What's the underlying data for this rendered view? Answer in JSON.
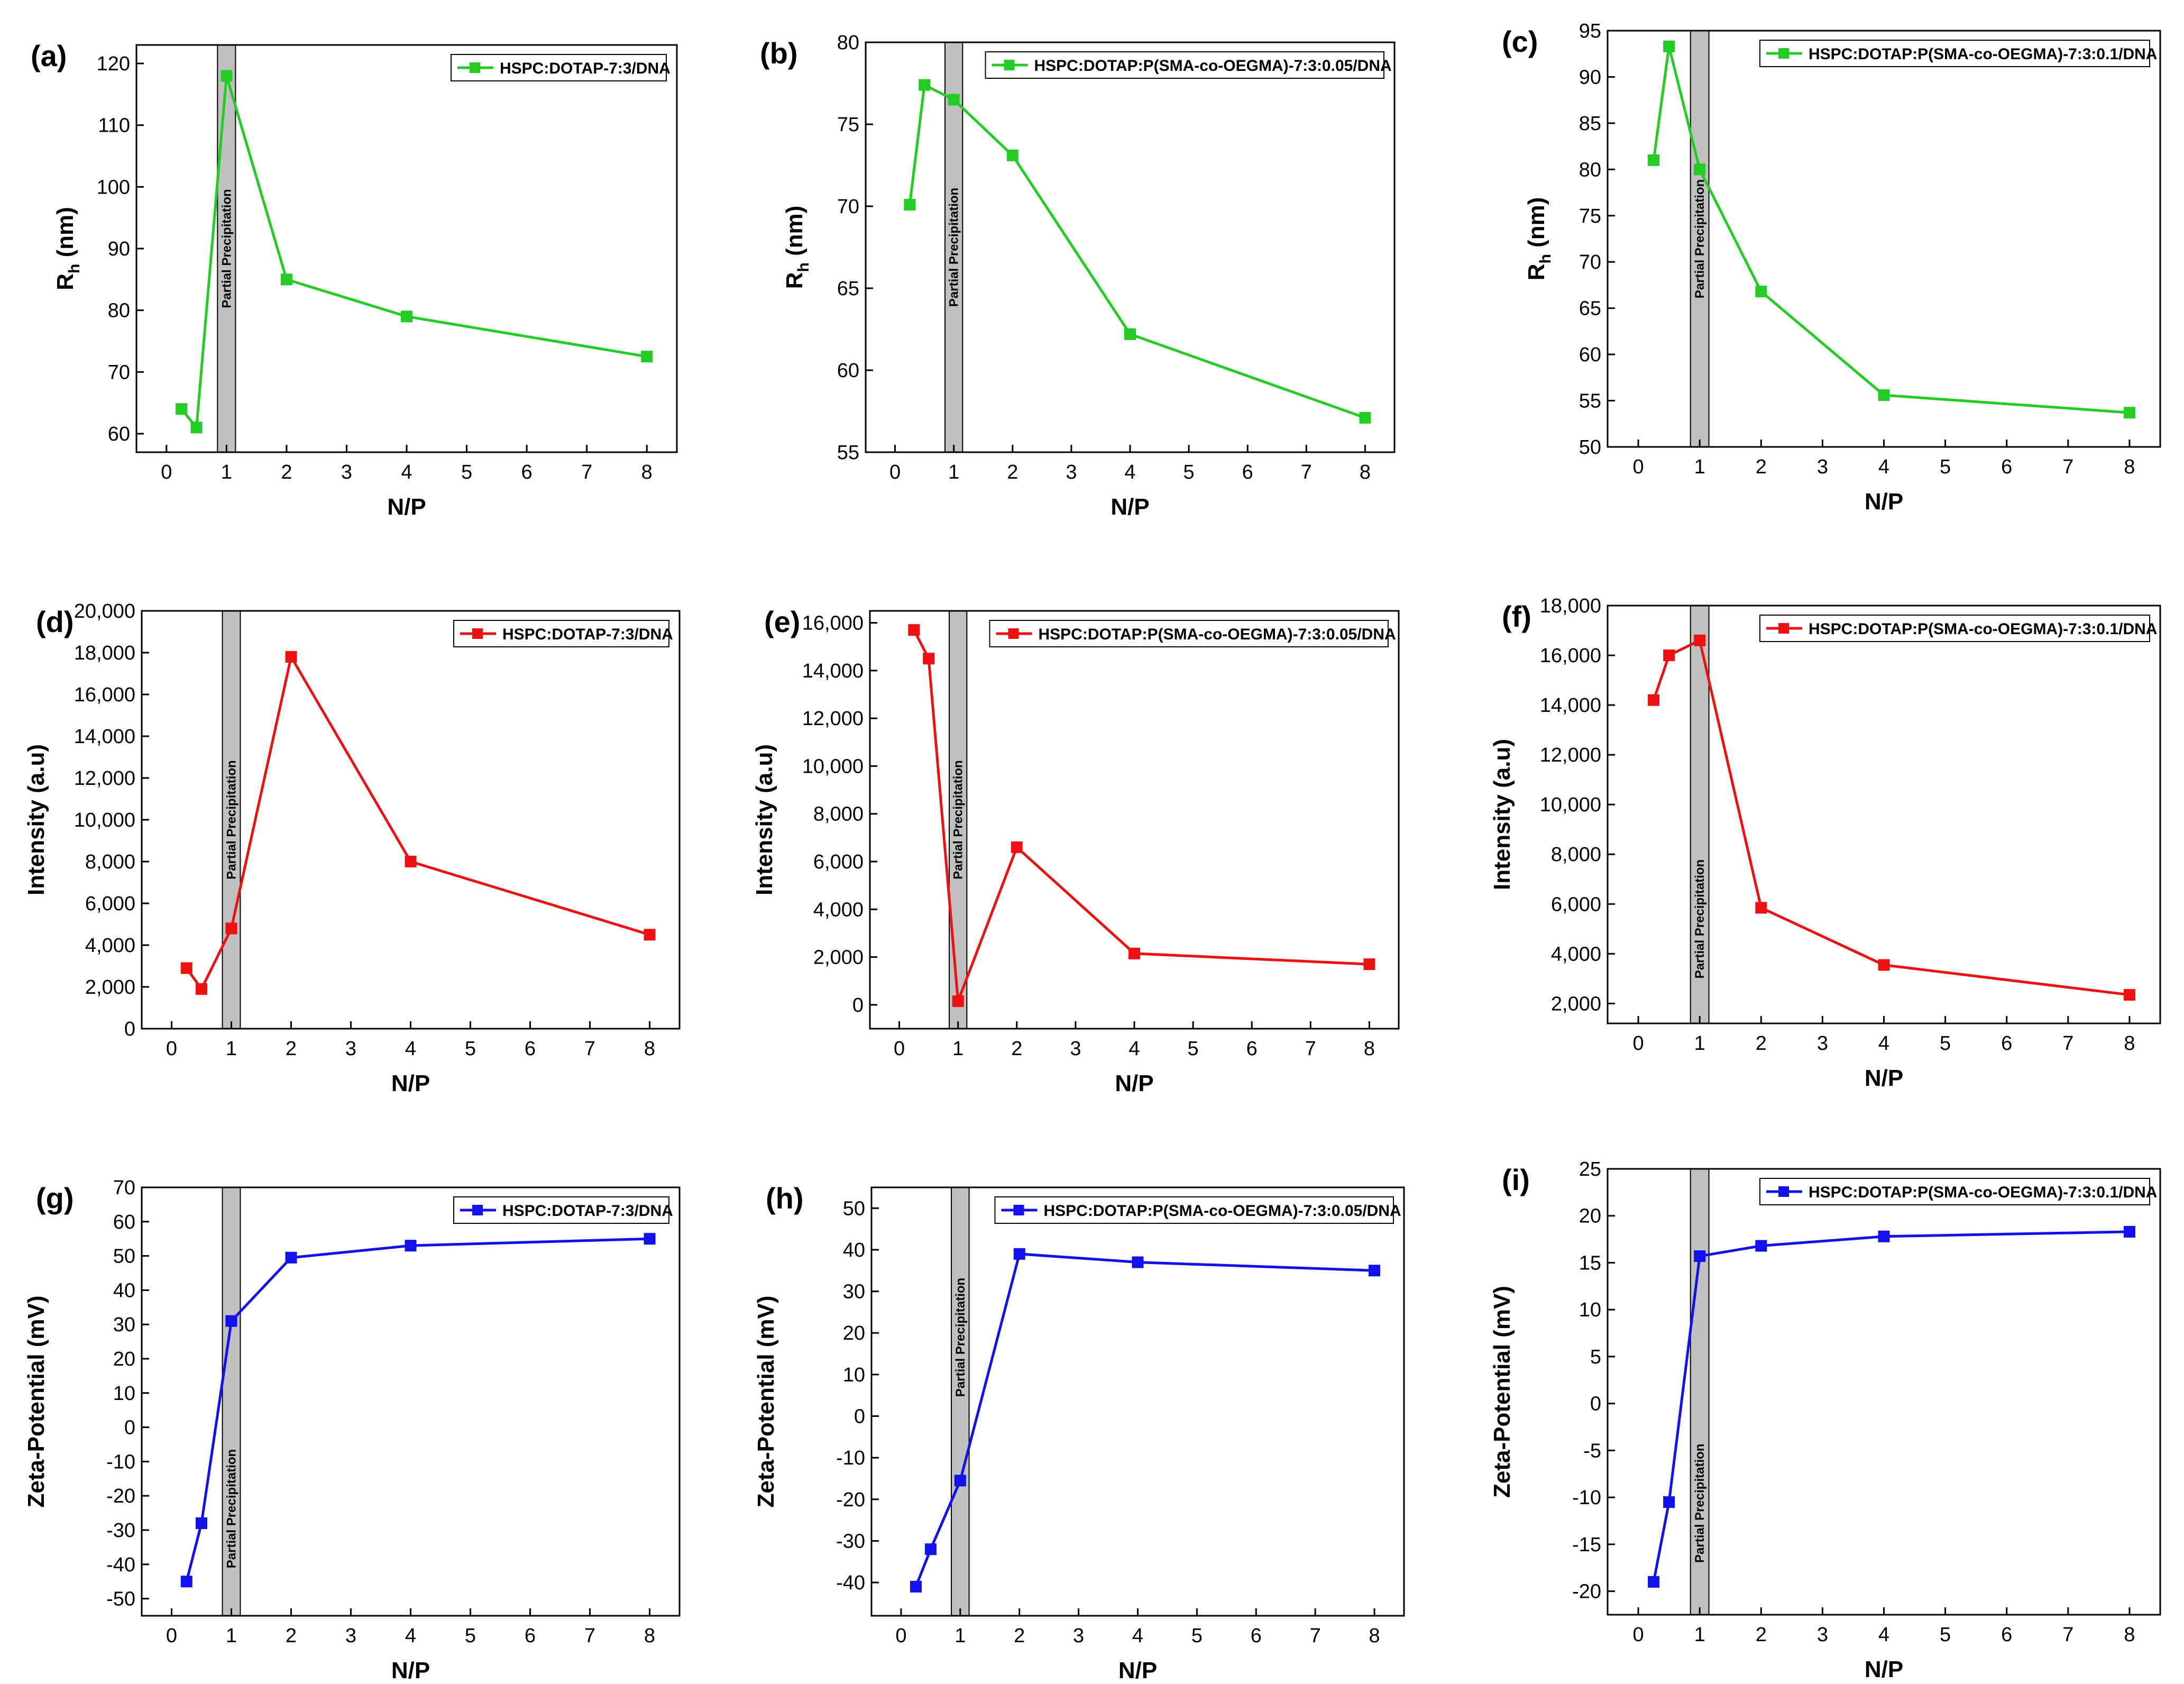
{
  "x_axis_label": "N/P",
  "band_label": "Partial Precipitation",
  "colors": {
    "green": "#22cc22",
    "red": "#ee1111",
    "blue": "#1111ee",
    "band": "#c0c0c0"
  },
  "chart_data": [
    {
      "panel": "(a)",
      "type": "line",
      "ylabel_base": "R",
      "ylabel_sub": "h",
      "ylabel_suffix": " (nm)",
      "legend": "HSPC:DOTAP-7:3/DNA",
      "color": "#22cc22",
      "xlim": [
        -0.5,
        8.5
      ],
      "ylim": [
        57,
        123
      ],
      "xticks": [
        0,
        1,
        2,
        3,
        4,
        5,
        6,
        7,
        8
      ],
      "xtick_labels": [
        "0",
        "1",
        "2",
        "3",
        "4",
        "5",
        "6",
        "7",
        "8"
      ],
      "yticks": [
        60,
        70,
        80,
        90,
        100,
        110,
        120
      ],
      "ytick_labels": [
        "60",
        "70",
        "80",
        "90",
        "100",
        "110",
        "120"
      ],
      "band": [
        0.85,
        1.15
      ],
      "x": [
        0.25,
        0.5,
        1,
        2,
        4,
        8
      ],
      "y": [
        64,
        61,
        118,
        85,
        79,
        72.5
      ]
    },
    {
      "panel": "(b)",
      "type": "line",
      "ylabel_base": "R",
      "ylabel_sub": "h",
      "ylabel_suffix": " (nm)",
      "legend": "HSPC:DOTAP:P(SMA-co-OEGMA)-7:3:0.05/DNA",
      "color": "#22cc22",
      "xlim": [
        -0.5,
        8.5
      ],
      "ylim": [
        55,
        80
      ],
      "xticks": [
        0,
        1,
        2,
        3,
        4,
        5,
        6,
        7,
        8
      ],
      "xtick_labels": [
        "0",
        "1",
        "2",
        "3",
        "4",
        "5",
        "6",
        "7",
        "8"
      ],
      "yticks": [
        55,
        60,
        65,
        70,
        75,
        80
      ],
      "ytick_labels": [
        "55",
        "60",
        "65",
        "70",
        "75",
        "80"
      ],
      "band": [
        0.85,
        1.15
      ],
      "x": [
        0.25,
        0.5,
        1,
        2,
        4,
        8
      ],
      "y": [
        70.1,
        77.4,
        76.5,
        73.1,
        62.2,
        57.1
      ]
    },
    {
      "panel": "(c)",
      "type": "line",
      "ylabel_base": "R",
      "ylabel_sub": "h",
      "ylabel_suffix": " (nm)",
      "legend": "HSPC:DOTAP:P(SMA-co-OEGMA)-7:3:0.1/DNA",
      "color": "#22cc22",
      "xlim": [
        -0.5,
        8.5
      ],
      "ylim": [
        50,
        95
      ],
      "xticks": [
        0,
        1,
        2,
        3,
        4,
        5,
        6,
        7,
        8
      ],
      "xtick_labels": [
        "0",
        "1",
        "2",
        "3",
        "4",
        "5",
        "6",
        "7",
        "8"
      ],
      "yticks": [
        50,
        55,
        60,
        65,
        70,
        75,
        80,
        85,
        90,
        95
      ],
      "ytick_labels": [
        "50",
        "55",
        "60",
        "65",
        "70",
        "75",
        "80",
        "85",
        "90",
        "95"
      ],
      "band": [
        0.85,
        1.15
      ],
      "x": [
        0.25,
        0.5,
        1,
        2,
        4,
        8
      ],
      "y": [
        81,
        93.3,
        80,
        66.8,
        55.6,
        53.7
      ]
    },
    {
      "panel": "(d)",
      "type": "line",
      "ylabel_base": "Intensity (a.u)",
      "ylabel_sub": "",
      "ylabel_suffix": "",
      "legend": "HSPC:DOTAP-7:3/DNA",
      "color": "#ee1111",
      "xlim": [
        -0.5,
        8.5
      ],
      "ylim": [
        0,
        20000
      ],
      "xticks": [
        0,
        1,
        2,
        3,
        4,
        5,
        6,
        7,
        8
      ],
      "xtick_labels": [
        "0",
        "1",
        "2",
        "3",
        "4",
        "5",
        "6",
        "7",
        "8"
      ],
      "yticks": [
        0,
        2000,
        4000,
        6000,
        8000,
        10000,
        12000,
        14000,
        16000,
        18000,
        20000
      ],
      "ytick_labels": [
        "0",
        "2,000",
        "4,000",
        "6,000",
        "8,000",
        "10,000",
        "12,000",
        "14,000",
        "16,000",
        "18,000",
        "20,000"
      ],
      "band": [
        0.85,
        1.15
      ],
      "x": [
        0.25,
        0.5,
        1,
        2,
        4,
        8
      ],
      "y": [
        2900,
        1900,
        4800,
        17800,
        8000,
        4500
      ]
    },
    {
      "panel": "(e)",
      "type": "line",
      "ylabel_base": "Intensity (a.u)",
      "ylabel_sub": "",
      "ylabel_suffix": "",
      "legend": "HSPC:DOTAP:P(SMA-co-OEGMA)-7:3:0.05/DNA",
      "color": "#ee1111",
      "xlim": [
        -0.5,
        8.5
      ],
      "ylim": [
        -1000,
        16500
      ],
      "xticks": [
        0,
        1,
        2,
        3,
        4,
        5,
        6,
        7,
        8
      ],
      "xtick_labels": [
        "0",
        "1",
        "2",
        "3",
        "4",
        "5",
        "6",
        "7",
        "8"
      ],
      "yticks": [
        0,
        2000,
        4000,
        6000,
        8000,
        10000,
        12000,
        14000,
        16000
      ],
      "ytick_labels": [
        "0",
        "2,000",
        "4,000",
        "6,000",
        "8,000",
        "10,000",
        "12,000",
        "14,000",
        "16,000"
      ],
      "band": [
        0.85,
        1.15
      ],
      "x": [
        0.25,
        0.5,
        1,
        2,
        4,
        8
      ],
      "y": [
        15700,
        14500,
        150,
        6600,
        2150,
        1700
      ]
    },
    {
      "panel": "(f)",
      "type": "line",
      "ylabel_base": "Intensity (a.u)",
      "ylabel_sub": "",
      "ylabel_suffix": "",
      "legend": "HSPC:DOTAP:P(SMA-co-OEGMA)-7:3:0.1/DNA",
      "color": "#ee1111",
      "xlim": [
        -0.5,
        8.5
      ],
      "ylim": [
        1200,
        18000
      ],
      "xticks": [
        0,
        1,
        2,
        3,
        4,
        5,
        6,
        7,
        8
      ],
      "xtick_labels": [
        "0",
        "1",
        "2",
        "3",
        "4",
        "5",
        "6",
        "7",
        "8"
      ],
      "yticks": [
        2000,
        4000,
        6000,
        8000,
        10000,
        12000,
        14000,
        16000,
        18000
      ],
      "ytick_labels": [
        "2,000",
        "4,000",
        "6,000",
        "8,000",
        "10,000",
        "12,000",
        "14,000",
        "16,000",
        "18,000"
      ],
      "band": [
        0.85,
        1.15
      ],
      "x": [
        0.25,
        0.5,
        1,
        2,
        4,
        8
      ],
      "y": [
        14200,
        16000,
        16600,
        5850,
        3550,
        2350
      ]
    },
    {
      "panel": "(g)",
      "type": "line",
      "ylabel_base": "Zeta-Potential (mV)",
      "ylabel_sub": "",
      "ylabel_suffix": "",
      "legend": "HSPC:DOTAP-7:3/DNA",
      "color": "#1111ee",
      "xlim": [
        -0.5,
        8.5
      ],
      "ylim": [
        -55,
        70
      ],
      "xticks": [
        0,
        1,
        2,
        3,
        4,
        5,
        6,
        7,
        8
      ],
      "xtick_labels": [
        "0",
        "1",
        "2",
        "3",
        "4",
        "5",
        "6",
        "7",
        "8"
      ],
      "yticks": [
        -50,
        -40,
        -30,
        -20,
        -10,
        0,
        10,
        20,
        30,
        40,
        50,
        60,
        70
      ],
      "ytick_labels": [
        "-50",
        "-40",
        "-30",
        "-20",
        "-10",
        "0",
        "10",
        "20",
        "30",
        "40",
        "50",
        "60",
        "70"
      ],
      "band": [
        0.85,
        1.15
      ],
      "x": [
        0.25,
        0.5,
        1,
        2,
        4,
        8
      ],
      "y": [
        -45,
        -28,
        31,
        49.5,
        53,
        55
      ]
    },
    {
      "panel": "(h)",
      "type": "line",
      "ylabel_base": "Zeta-Potential (mV)",
      "ylabel_sub": "",
      "ylabel_suffix": "",
      "legend": "HSPC:DOTAP:P(SMA-co-OEGMA)-7:3:0.05/DNA",
      "color": "#1111ee",
      "xlim": [
        -0.5,
        8.5
      ],
      "ylim": [
        -48,
        55
      ],
      "xticks": [
        0,
        1,
        2,
        3,
        4,
        5,
        6,
        7,
        8
      ],
      "xtick_labels": [
        "0",
        "1",
        "2",
        "3",
        "4",
        "5",
        "6",
        "7",
        "8"
      ],
      "yticks": [
        -40,
        -30,
        -20,
        -10,
        0,
        10,
        20,
        30,
        40,
        50
      ],
      "ytick_labels": [
        "-40",
        "-30",
        "-20",
        "-10",
        "0",
        "10",
        "20",
        "30",
        "40",
        "50"
      ],
      "band": [
        0.85,
        1.15
      ],
      "x": [
        0.25,
        0.5,
        1,
        2,
        4,
        8
      ],
      "y": [
        -41,
        -32,
        -15.5,
        39,
        37,
        35
      ]
    },
    {
      "panel": "(i)",
      "type": "line",
      "ylabel_base": "Zeta-Potential (mV)",
      "ylabel_sub": "",
      "ylabel_suffix": "",
      "legend": "HSPC:DOTAP:P(SMA-co-OEGMA)-7:3:0.1/DNA",
      "color": "#1111ee",
      "xlim": [
        -0.5,
        8.5
      ],
      "ylim": [
        -22.5,
        25
      ],
      "xticks": [
        0,
        1,
        2,
        3,
        4,
        5,
        6,
        7,
        8
      ],
      "xtick_labels": [
        "0",
        "1",
        "2",
        "3",
        "4",
        "5",
        "6",
        "7",
        "8"
      ],
      "yticks": [
        -20,
        -15,
        -10,
        -5,
        0,
        5,
        10,
        15,
        20,
        25
      ],
      "ytick_labels": [
        "-20",
        "-15",
        "-10",
        "-5",
        "0",
        "5",
        "10",
        "15",
        "20",
        "25"
      ],
      "band": [
        0.85,
        1.15
      ],
      "x": [
        0.25,
        0.5,
        1,
        2,
        4,
        8
      ],
      "y": [
        -19,
        -10.5,
        15.7,
        16.8,
        17.8,
        18.3
      ]
    }
  ]
}
